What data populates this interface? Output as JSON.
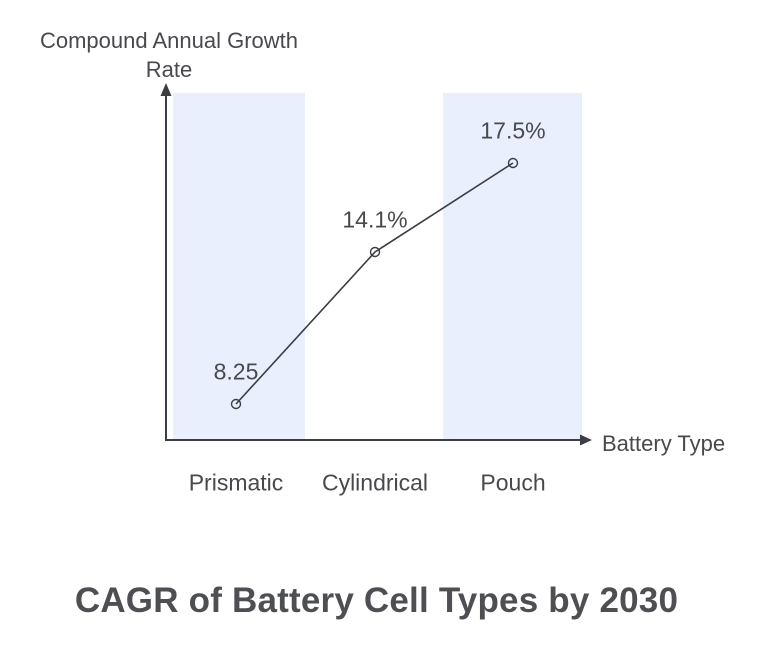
{
  "chart_data": {
    "type": "line",
    "title": "CAGR of Battery Cell Types by 2030",
    "xlabel": "Battery Type",
    "ylabel": "Compound Annual Growth Rate",
    "categories": [
      "Prismatic",
      "Cylindrical",
      "Pouch"
    ],
    "series": [
      {
        "name": "Compound Annual Growth Rate",
        "values": [
          8.25,
          14.1,
          17.5
        ]
      }
    ],
    "point_labels": [
      "8.25",
      "14.1%",
      "17.5%"
    ],
    "highlighted_categories": [
      "Prismatic",
      "Pouch"
    ],
    "marker": "open-circle",
    "grid": false,
    "legend_position": "none",
    "axis_style": "arrow",
    "colors": {
      "band": "#e9effd",
      "line": "#3b3e44",
      "text": "#48494d",
      "title_text": "#4e4f53",
      "background": "#ffffff"
    }
  },
  "labels": {
    "ylabel_line1": "Compound Annual Growth",
    "ylabel_line2": "Rate"
  }
}
